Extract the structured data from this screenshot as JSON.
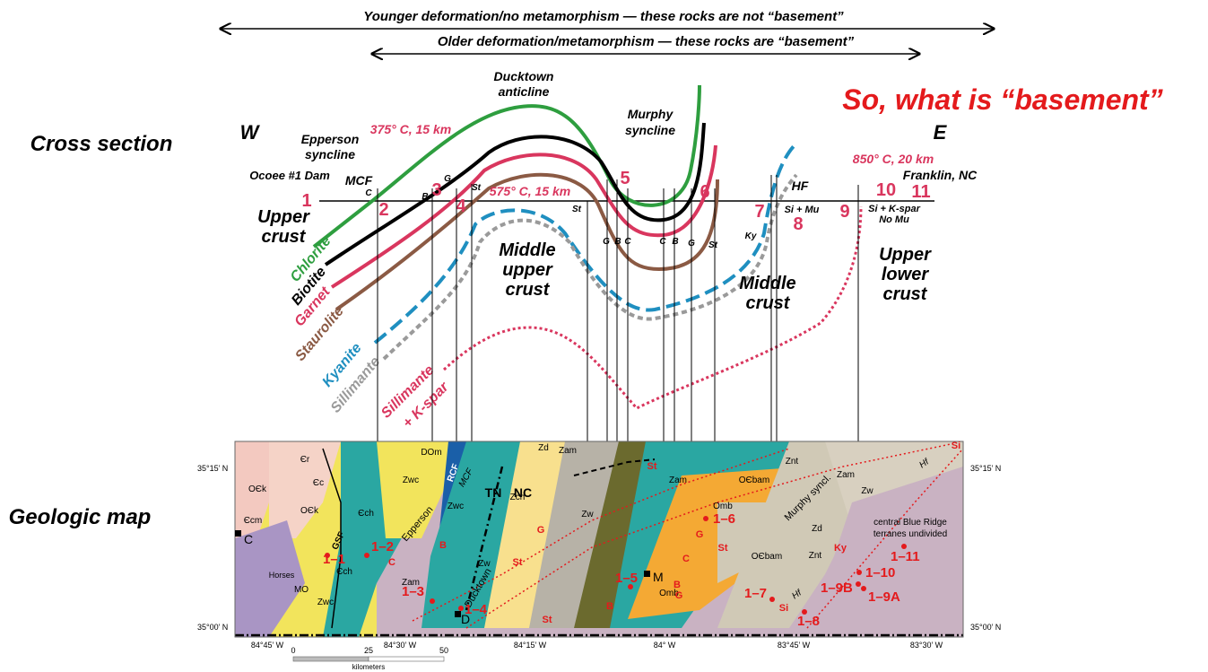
{
  "arrows": {
    "top": "Younger deformation/no metamorphism — these rocks are not “basement”",
    "second": "Older deformation/metamorphism — these rocks are “basement”"
  },
  "question": "So, what is “basement”",
  "row_labels": {
    "cross_section": "Cross section",
    "geologic_map": "Geologic map"
  },
  "cross_section": {
    "west": "W",
    "east": "E",
    "structures": {
      "ducktown_1": "Ducktown",
      "ducktown_2": "anticline",
      "murphy_1": "Murphy",
      "murphy_2": "syncline",
      "epperson_1": "Epperson",
      "epperson_2": "syncline"
    },
    "conditions": {
      "c375": "375° C, 15 km",
      "c575": "575° C, 15 km",
      "c850": "850° C, 20 km"
    },
    "places": {
      "ocoee": "Ocoee #1 Dam",
      "mcf": "MCF",
      "hf": "HF",
      "franklin": "Franklin, NC"
    },
    "assemblages": {
      "si_mu": "Si + Mu",
      "si_kspar_1": "Si + K-spar",
      "si_kspar_2": "No Mu"
    },
    "crust": {
      "upper_1": "Upper",
      "upper_2": "crust",
      "mid_upper_1": "Middle",
      "mid_upper_2": "upper",
      "mid_upper_3": "crust",
      "middle_1": "Middle",
      "middle_2": "crust",
      "upper_lower_1": "Upper",
      "upper_lower_2": "lower",
      "upper_lower_3": "crust"
    },
    "isograds": {
      "chlorite": "Chlorite",
      "biotite": "Biotite",
      "garnet": "Garnet",
      "staurolite": "Staurolite",
      "kyanite": "Kyanite",
      "sillimanite": "Sillimante",
      "sil_kspar_1": "Sillimante",
      "sil_kspar_2": "+ K-spar"
    },
    "station_numbers": [
      "1",
      "2",
      "3",
      "4",
      "5",
      "6",
      "7",
      "8",
      "9",
      "10",
      "11"
    ],
    "mineral_letters": {
      "c": "C",
      "b": "B",
      "g": "G",
      "st": "St",
      "ky": "Ky"
    },
    "colors": {
      "chlorite": "#2e9e3f",
      "biotite": "#000000",
      "garnet": "#d9365e",
      "staurolite": "#8b5a44",
      "kyanite": "#1f8fc0",
      "sillimanite": "#9a9a9a",
      "sil_kspar": "#d9365e",
      "red_text": "#d9365e",
      "title_red": "#e41a1c"
    }
  },
  "map": {
    "lat_top": "35°15’ N",
    "lat_bottom": "35°00’ N",
    "lon": [
      "84°45’ W",
      "84°30’ W",
      "84°15’ W",
      "84° W",
      "83°45’ W",
      "83°30’ W"
    ],
    "scale": {
      "t0": "0",
      "t25": "25",
      "t50": "50",
      "unit": "kilometers"
    },
    "units": {
      "DOm": "DOm",
      "Zwc": "Zwc",
      "Cr": "Єr",
      "Cc": "Єc",
      "OCk": "OЄk",
      "Cch": "Єch",
      "Ccm": "Єcm",
      "Zam": "Zam",
      "Zd": "Zd",
      "Zch": "Zch",
      "Zw": "Zw",
      "Omb": "Omb",
      "OCbam": "OЄbam",
      "Znt": "Znt",
      "MO": "MO"
    },
    "faults": {
      "gsf": "GSF",
      "rcf": "RCF",
      "mcf": "MCF",
      "hf": "Hf"
    },
    "labels": {
      "horses": "Horses",
      "tn": "TN",
      "nc": "NC",
      "epperson": "Epperson",
      "ducktown": "Ducktown",
      "murphy_syncl": "Murphy syncl.",
      "cbr_1": "central Blue Ridge",
      "cbr_2": "terranes undivided",
      "town_c": "C",
      "town_m": "M",
      "town_d": "D"
    },
    "samples": {
      "s1_1": "1–1",
      "s1_2": "1–2",
      "s1_3": "1–3",
      "s1_4": "1–4",
      "s1_5": "1–5",
      "s1_6": "1–6",
      "s1_7": "1–7",
      "s1_8": "1–8",
      "s1_9a": "1–9A",
      "s1_9b": "1–9B",
      "s1_10": "1–10",
      "s1_11": "1–11"
    },
    "zone_letters": {
      "g": "G",
      "st": "St",
      "b": "B",
      "c": "C",
      "si": "Si",
      "ky": "Ky"
    }
  }
}
